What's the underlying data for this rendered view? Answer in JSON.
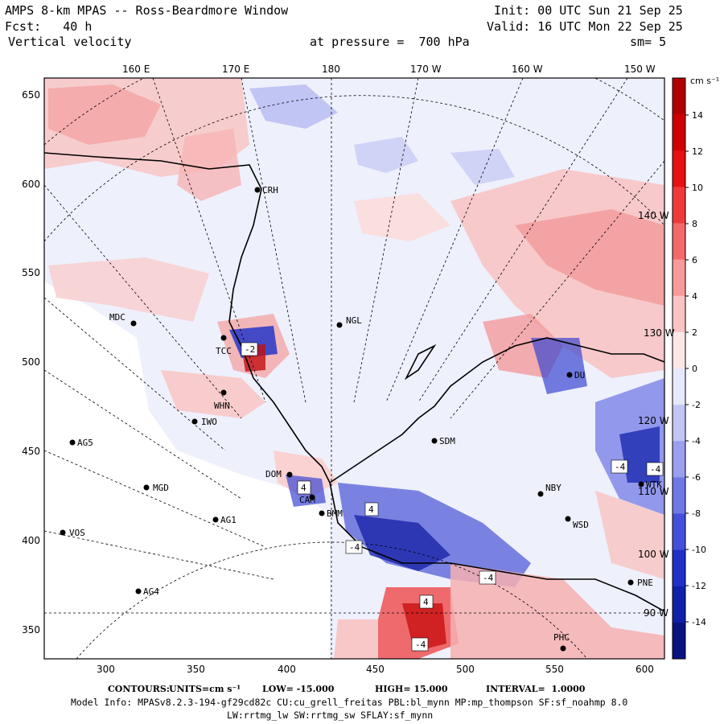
{
  "header": {
    "title": "AMPS 8-km MPAS -- Ross-Beardmore Window",
    "init": "Init: 00 UTC Sun 21 Sep 25",
    "fcst": "Fcst:   40 h",
    "valid": "Valid: 16 UTC Mon 22 Sep 25",
    "field": "Vertical velocity",
    "pressure": "at pressure =  700 hPa",
    "smooth": "sm= 5"
  },
  "axes": {
    "top_labels": [
      "160 E",
      "170 E",
      "180",
      "170 W",
      "160 W",
      "150 W"
    ],
    "x_ticks": [
      "300",
      "350",
      "400",
      "450",
      "500",
      "550",
      "600"
    ],
    "y_ticks": [
      "650",
      "600",
      "550",
      "500",
      "450",
      "400",
      "350"
    ],
    "right_meridian_labels": [
      "140 W",
      "130 W",
      "120 W",
      "110 W",
      "100 W",
      "90 W"
    ]
  },
  "colorbar": {
    "units": "cm s⁻¹",
    "labels": [
      "14",
      "12",
      "10",
      "8",
      "6",
      "4",
      "2",
      "0",
      "-2",
      "-4",
      "-6",
      "-8",
      "-10",
      "-12",
      "-14"
    ],
    "colors": [
      "#b30000",
      "#d00000",
      "#e81010",
      "#f03a3a",
      "#f46a6a",
      "#f89a9a",
      "#fbc4c4",
      "#fde6e6",
      "#e6e8fb",
      "#c2c6f4",
      "#9aa0ee",
      "#7078e6",
      "#4450dc",
      "#2030c8",
      "#1020a8",
      "#0a1480"
    ]
  },
  "stations": [
    {
      "code": "CRH"
    },
    {
      "code": "MDC"
    },
    {
      "code": "NGL"
    },
    {
      "code": "TCC"
    },
    {
      "code": "DU"
    },
    {
      "code": "WHN"
    },
    {
      "code": "IWO"
    },
    {
      "code": "AG5"
    },
    {
      "code": "SDM"
    },
    {
      "code": "DOM"
    },
    {
      "code": "MGD"
    },
    {
      "code": "NBY"
    },
    {
      "code": "WTK"
    },
    {
      "code": "AG1"
    },
    {
      "code": "BMM"
    },
    {
      "code": "WSD"
    },
    {
      "code": "VOS"
    },
    {
      "code": "AG4"
    },
    {
      "code": "PNE"
    },
    {
      "code": "PHC"
    },
    {
      "code": "CAM"
    }
  ],
  "contour_labels": [
    "-4",
    "-4",
    "-4",
    "-4",
    "4",
    "4",
    "4",
    "-4",
    "-2"
  ],
  "footer": {
    "contours_label": "CONTOURS:",
    "units": "UNITS=cm s⁻¹",
    "low": "LOW= -15.000",
    "high": "HIGH= 15.000",
    "interval": "INTERVAL=  1.0000",
    "model_info": "Model Info: MPASv8.2.3-194-gf29cd82c CU:cu_grell_freitas PBL:bl_mynn MP:mp_thompson SF:sf_noahmp 8.0",
    "physics": "LW:rrtmg_lw SW:rrtmg_sw SFLAY:sf_mynn"
  }
}
